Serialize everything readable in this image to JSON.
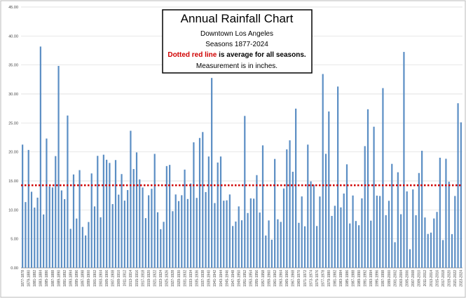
{
  "chart_data": {
    "type": "bar",
    "title": "Annual Rainfall Chart",
    "subtitle": "Downtown Los Angeles",
    "seasons": "Seasons 1877-2024",
    "note_red": "Dotted red line",
    "note_rest": "is average for all seasons.",
    "measurement": "Measurement  is in inches.",
    "color": "#5b8ec4",
    "average_color": "#d00000",
    "average": 14.25,
    "grid": true,
    "ylim": [
      0,
      45
    ],
    "yticks": [
      {
        "value": 0,
        "label": "0.00"
      },
      {
        "value": 5,
        "label": "5.00"
      },
      {
        "value": 10,
        "label": "10.00"
      },
      {
        "value": 15,
        "label": "15.00"
      },
      {
        "value": 20,
        "label": "20.00"
      },
      {
        "value": 25,
        "label": "25.00"
      },
      {
        "value": 30,
        "label": "30.00"
      },
      {
        "value": 35,
        "label": "35.00"
      },
      {
        "value": 40,
        "label": "40.00"
      },
      {
        "value": 45,
        "label": "45.00"
      }
    ],
    "categories": [
      "1877-1878",
      null,
      "1879-1880",
      null,
      "1881-1882",
      null,
      "1883-1884",
      null,
      "1885-1886",
      null,
      "1887-1888",
      null,
      "1889-1890",
      null,
      "1891-1892",
      null,
      "1893-1894",
      null,
      "1895-1896",
      null,
      "1897-1898",
      null,
      "1899-1900",
      null,
      "1901-1902",
      null,
      "1903-1904",
      null,
      "1905-1906",
      null,
      "1907-1908",
      null,
      "1909-1910",
      null,
      "1911-1912",
      null,
      "1913-1914",
      null,
      "1915-1916",
      null,
      "1917-1918",
      null,
      "1919-1920",
      null,
      "1921-1922",
      null,
      "1923-1924",
      null,
      "1925-1926",
      null,
      "1927-1928",
      null,
      "1929-1930",
      null,
      "1931-1932",
      null,
      "1933-1934",
      null,
      "1935-1936",
      null,
      "1937-1938",
      null,
      "1939-1940",
      null,
      "1941-1942",
      null,
      "1943-1944",
      null,
      "1945-1946",
      null,
      "1947-1948",
      null,
      "1949-1950",
      null,
      "1951-1952",
      null,
      "1953-1954",
      null,
      "1955-1956",
      null,
      "1957-1958",
      null,
      "1959-1960",
      null,
      "1961-1962",
      null,
      "1963-1964",
      null,
      "1965-1966",
      null,
      "1967-1968",
      null,
      "1969-1970",
      null,
      "1971-1972",
      null,
      "1973-1974",
      null,
      "1975-1976",
      null,
      "1977-1978",
      null,
      "1979-1980",
      null,
      "1981-1982",
      null,
      "1983-1984",
      null,
      "1985-1986",
      null,
      "1987-1988",
      null,
      "1989-1990",
      null,
      "1991-1992",
      null,
      "1993-1994",
      null,
      "1995-1996",
      null,
      "1997-1998",
      null,
      "1999-2000",
      null,
      "2001-2002",
      null,
      "2003-2004",
      null,
      "2005-2006",
      null,
      "2007-2008",
      null,
      "2009-2010",
      null,
      "2011-2012",
      null,
      "2013-2014",
      null,
      "2015-2016",
      null,
      "2017-2018",
      null,
      "2019-2020",
      null,
      "2021-2022",
      null,
      "2023-2024"
    ],
    "values": [
      21.26,
      11.35,
      20.34,
      13.13,
      10.4,
      12.11,
      38.18,
      9.21,
      22.31,
      14.05,
      13.87,
      19.28,
      34.84,
      13.36,
      11.85,
      26.28,
      6.73,
      16.11,
      8.51,
      16.86,
      7.06,
      5.59,
      7.91,
      16.29,
      10.6,
      19.32,
      8.72,
      19.52,
      18.65,
      18.1,
      11.0,
      18.6,
      12.63,
      16.18,
      11.6,
      13.42,
      23.65,
      17.05,
      19.92,
      15.26,
      13.86,
      8.58,
      12.52,
      13.65,
      19.66,
      9.59,
      6.67,
      7.94,
      17.56,
      17.76,
      9.77,
      12.66,
      11.52,
      12.53,
      16.95,
      11.88,
      14.55,
      21.66,
      12.07,
      22.41,
      23.43,
      13.07,
      19.21,
      32.76,
      11.18,
      18.17,
      19.21,
      11.59,
      11.65,
      12.66,
      7.22,
      7.99,
      10.6,
      8.21,
      26.21,
      9.46,
      11.99,
      11.94,
      16.0,
      9.54,
      21.13,
      5.58,
      8.18,
      4.85,
      18.79,
      8.38,
      7.93,
      13.69,
      20.44,
      22.0,
      16.58,
      27.47,
      7.77,
      12.32,
      7.17,
      21.26,
      14.92,
      14.35,
      7.22,
      12.31,
      33.44,
      19.67,
      26.98,
      8.96,
      10.71,
      31.28,
      10.43,
      12.82,
      17.86,
      7.66,
      12.48,
      8.08,
      7.35,
      11.99,
      21.0,
      27.36,
      8.14,
      24.35,
      12.46,
      12.4,
      31.01,
      9.09,
      11.57,
      17.94,
      4.42,
      16.49,
      9.25,
      37.25,
      13.19,
      3.21,
      13.53,
      9.08,
      16.36,
      20.2,
      8.69,
      5.85,
      6.08,
      8.52,
      9.65,
      19.0,
      4.79,
      18.82,
      14.86,
      5.82,
      12.4,
      28.4,
      25.1
    ]
  }
}
